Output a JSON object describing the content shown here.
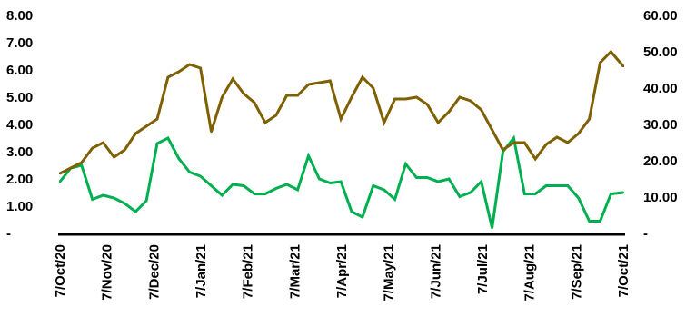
{
  "chart_data": {
    "type": "line",
    "title": "",
    "xlabel": "",
    "ylabel": "",
    "y_left_ticks": [
      "8.00",
      "7.00",
      "6.00",
      "5.00",
      "4.00",
      "3.00",
      "2.00",
      "1.00",
      "-"
    ],
    "y_right_ticks": [
      "60.00",
      "50.00",
      "40.00",
      "30.00",
      "20.00",
      "10.00",
      "-"
    ],
    "ylim_left": [
      0,
      8
    ],
    "ylim_right": [
      0,
      60
    ],
    "x_tick_labels": [
      "7/Oct/20",
      "7/Nov/20",
      "7/Dec/20",
      "7/Jan/21",
      "7/Feb/21",
      "7/Mar/21",
      "7/Apr/21",
      "7/May/21",
      "7/Jun/21",
      "7/Jul/21",
      "7/Aug/21",
      "7/Sep/21",
      "7/Oct/21"
    ],
    "grid": false,
    "legend": "none",
    "series": [
      {
        "axis": "left",
        "color": "#00b050",
        "x": [
          "2020-10-07",
          "2020-10-14",
          "2020-10-21",
          "2020-10-28",
          "2020-11-04",
          "2020-11-11",
          "2020-11-18",
          "2020-11-25",
          "2020-12-02",
          "2020-12-09",
          "2020-12-16",
          "2020-12-23",
          "2020-12-30",
          "2021-01-06",
          "2021-01-13",
          "2021-01-20",
          "2021-01-27",
          "2021-02-03",
          "2021-02-10",
          "2021-02-17",
          "2021-02-24",
          "2021-03-03",
          "2021-03-10",
          "2021-03-17",
          "2021-03-24",
          "2021-03-31",
          "2021-04-07",
          "2021-04-14",
          "2021-04-21",
          "2021-04-28",
          "2021-05-05",
          "2021-05-12",
          "2021-05-19",
          "2021-05-26",
          "2021-06-02",
          "2021-06-09",
          "2021-06-16",
          "2021-06-23",
          "2021-06-30",
          "2021-07-07",
          "2021-07-14",
          "2021-07-21",
          "2021-07-28",
          "2021-08-04",
          "2021-08-11",
          "2021-08-18",
          "2021-08-25",
          "2021-09-01",
          "2021-09-08",
          "2021-09-15",
          "2021-09-22",
          "2021-09-29",
          "2021-10-07"
        ],
        "values": [
          1.9,
          2.4,
          2.5,
          1.25,
          1.4,
          1.3,
          1.1,
          0.8,
          1.2,
          3.3,
          3.5,
          2.75,
          2.25,
          2.1,
          1.75,
          1.4,
          1.8,
          1.75,
          1.45,
          1.45,
          1.65,
          1.8,
          1.6,
          2.85,
          2.0,
          1.85,
          1.9,
          0.8,
          0.6,
          1.75,
          1.6,
          1.25,
          2.55,
          2.05,
          2.05,
          1.9,
          2.0,
          1.35,
          1.5,
          1.9,
          0.2,
          3.0,
          3.5,
          1.45,
          1.45,
          1.75,
          1.75,
          1.75,
          1.3,
          0.45,
          0.45,
          1.45,
          1.5
        ]
      },
      {
        "axis": "right",
        "color": "#7f6000",
        "x": [
          "2020-10-07",
          "2020-10-14",
          "2020-10-21",
          "2020-10-28",
          "2020-11-04",
          "2020-11-11",
          "2020-11-18",
          "2020-11-25",
          "2020-12-02",
          "2020-12-09",
          "2020-12-16",
          "2020-12-23",
          "2020-12-30",
          "2021-01-06",
          "2021-01-13",
          "2021-01-20",
          "2021-01-27",
          "2021-02-03",
          "2021-02-10",
          "2021-02-17",
          "2021-02-24",
          "2021-03-03",
          "2021-03-10",
          "2021-03-17",
          "2021-03-24",
          "2021-03-31",
          "2021-04-07",
          "2021-04-14",
          "2021-04-21",
          "2021-04-28",
          "2021-05-05",
          "2021-05-12",
          "2021-05-19",
          "2021-05-26",
          "2021-06-02",
          "2021-06-09",
          "2021-06-16",
          "2021-06-23",
          "2021-06-30",
          "2021-07-07",
          "2021-07-14",
          "2021-07-21",
          "2021-07-28",
          "2021-08-04",
          "2021-08-11",
          "2021-08-18",
          "2021-08-25",
          "2021-09-01",
          "2021-09-08",
          "2021-09-15",
          "2021-09-22",
          "2021-09-29",
          "2021-10-07"
        ],
        "values": [
          16.5,
          18.0,
          19.5,
          23.5,
          25.0,
          21.0,
          23.0,
          27.5,
          29.5,
          31.5,
          43.0,
          44.5,
          46.5,
          45.5,
          28.0,
          37.5,
          42.5,
          38.5,
          36.0,
          30.5,
          32.5,
          38.0,
          38.0,
          41.0,
          41.5,
          42.0,
          31.5,
          37.5,
          43.0,
          40.0,
          30.5,
          37.0,
          37.0,
          37.5,
          35.5,
          30.5,
          33.5,
          37.5,
          36.5,
          34.0,
          28.5,
          23.0,
          25.0,
          25.0,
          20.5,
          24.5,
          26.5,
          25.0,
          27.5,
          31.5,
          47.0,
          50.0,
          46.0
        ]
      }
    ]
  }
}
